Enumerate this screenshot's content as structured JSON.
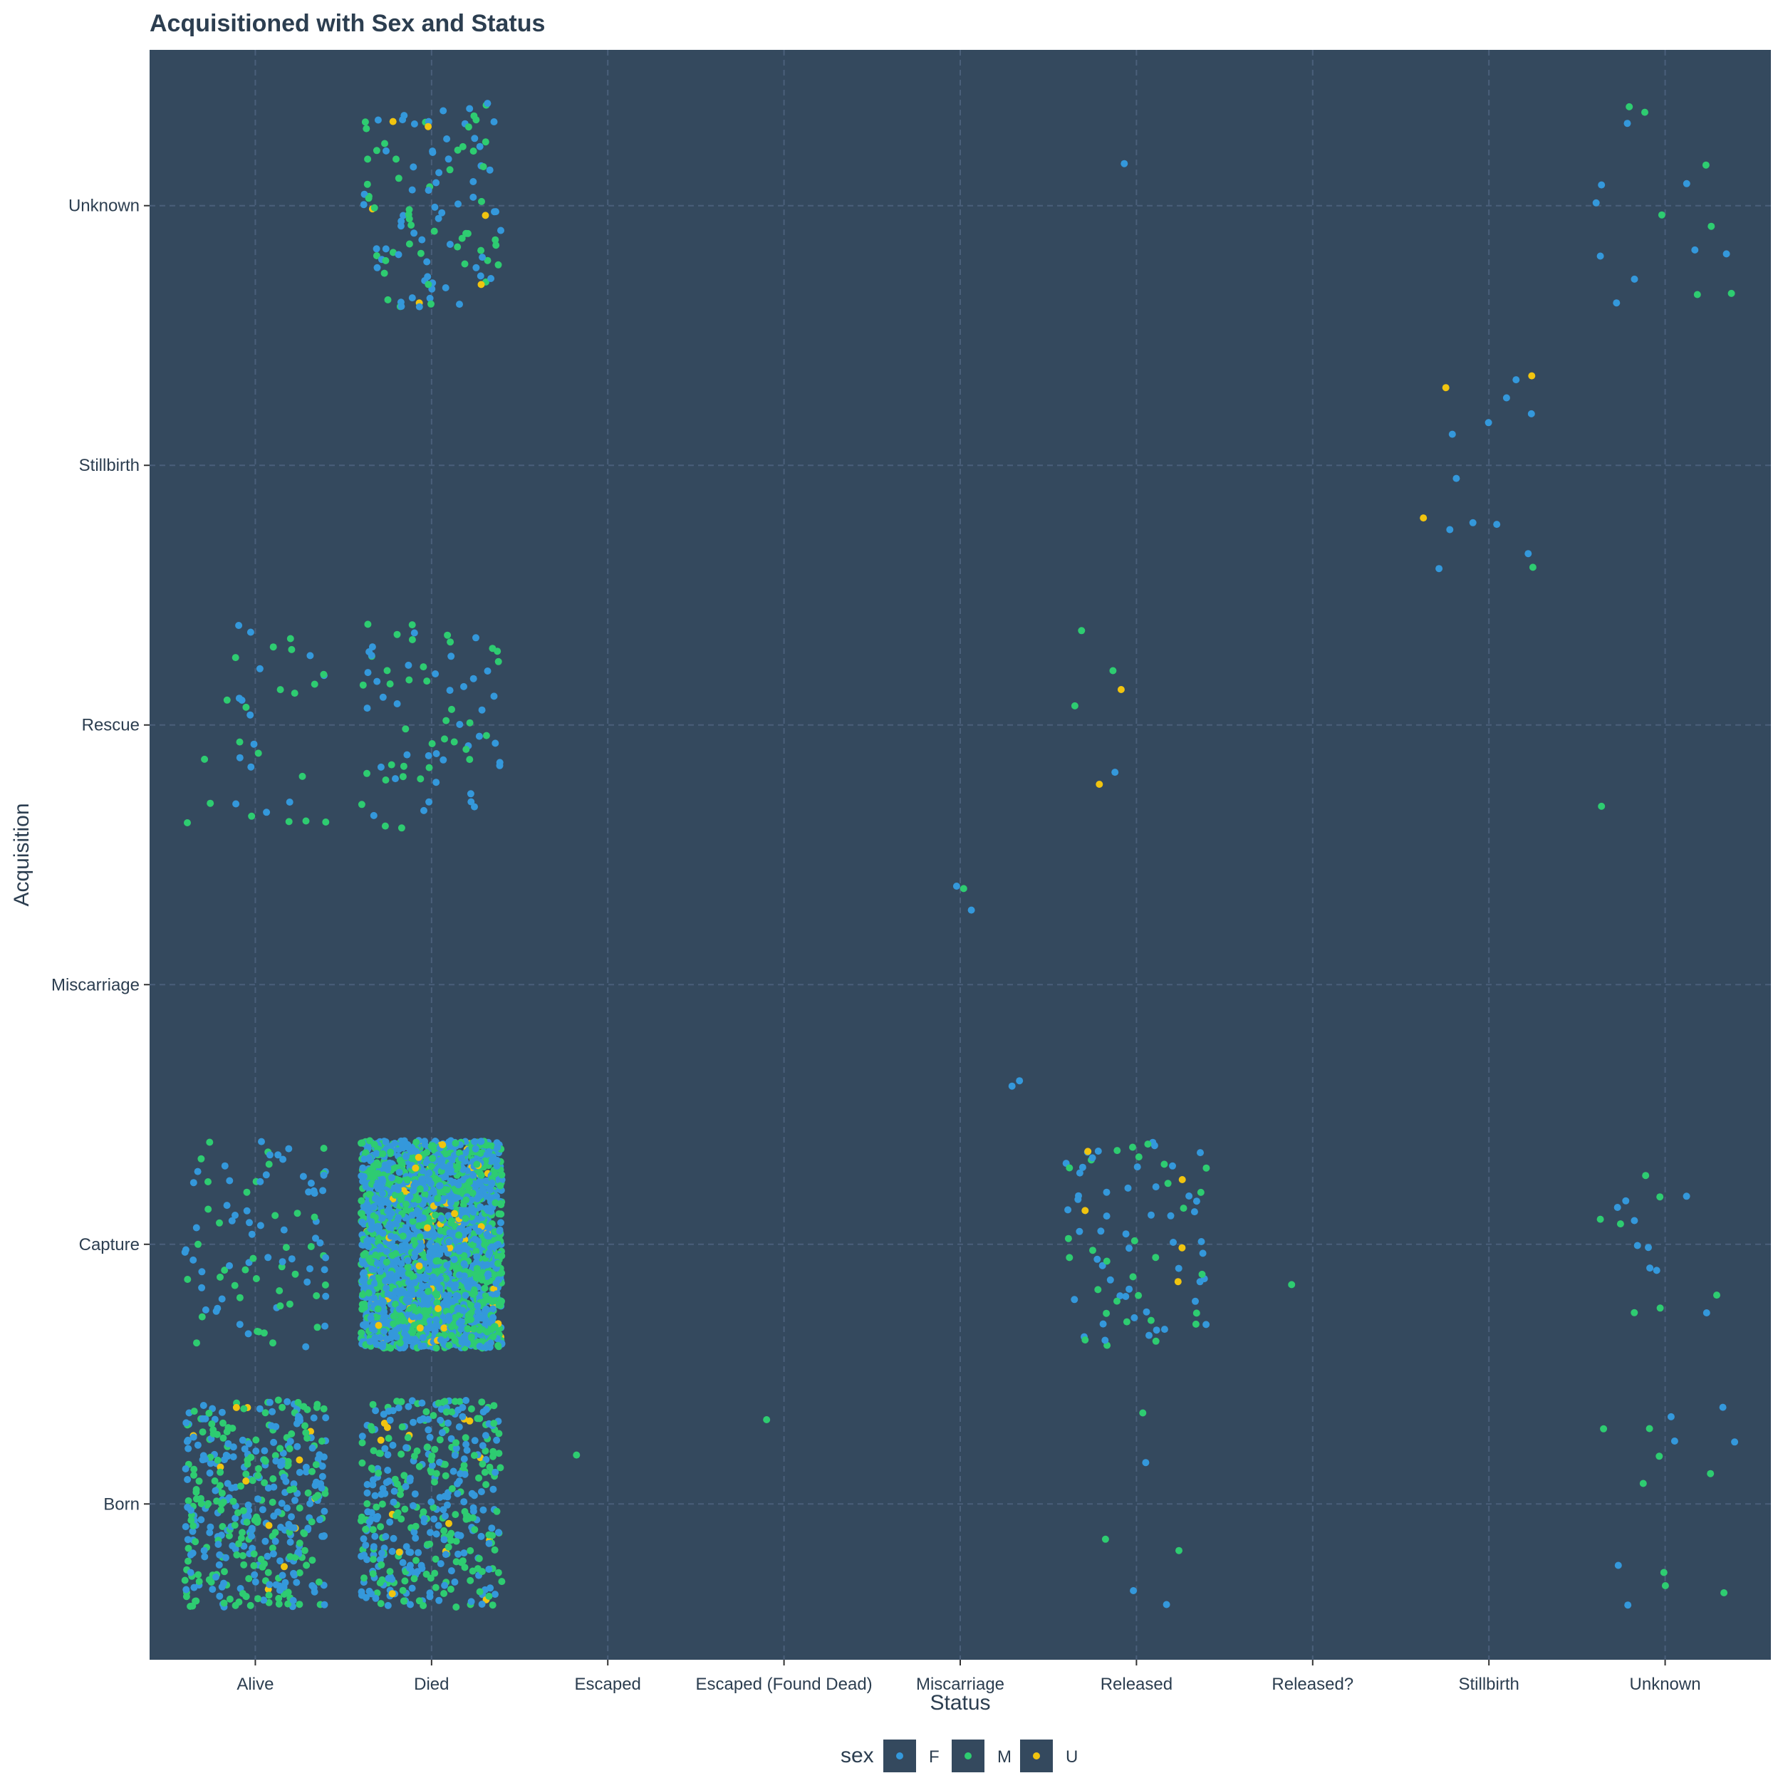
{
  "chart_data": {
    "type": "scatter",
    "subtype": "jitter",
    "title": "Acquisitioned with Sex and Status",
    "xlabel": "Status",
    "ylabel": "Acquisition",
    "x_categories": [
      "Alive",
      "Died",
      "Escaped",
      "Escaped (Found Dead)",
      "Miscarriage",
      "Released",
      "Released?",
      "Stillbirth",
      "Unknown"
    ],
    "y_categories": [
      "Born",
      "Capture",
      "Miscarriage",
      "Rescue",
      "Stillbirth",
      "Unknown"
    ],
    "grid": true,
    "legend": {
      "title": "sex",
      "position": "bottom",
      "entries": [
        {
          "name": "F",
          "color": "#3498db"
        },
        {
          "name": "M",
          "color": "#2ecc71"
        },
        {
          "name": "U",
          "color": "#f1c40f"
        }
      ]
    },
    "panel_background": "#34495e",
    "groups": [
      {
        "x": "Alive",
        "y": "Born",
        "F": 220,
        "M": 190,
        "U": 12
      },
      {
        "x": "Alive",
        "y": "Capture",
        "F": 55,
        "M": 40,
        "U": 0
      },
      {
        "x": "Alive",
        "y": "Rescue",
        "F": 14,
        "M": 20,
        "U": 0
      },
      {
        "x": "Died",
        "y": "Born",
        "F": 210,
        "M": 185,
        "U": 14
      },
      {
        "x": "Died",
        "y": "Capture",
        "F": 1500,
        "M": 1000,
        "U": 90
      },
      {
        "x": "Died",
        "y": "Rescue",
        "F": 38,
        "M": 36,
        "U": 0
      },
      {
        "x": "Died",
        "y": "Unknown",
        "F": 62,
        "M": 50,
        "U": 6
      },
      {
        "x": "Escaped",
        "y": "Born",
        "F": 0,
        "M": 1,
        "U": 0
      },
      {
        "x": "Escaped (Found Dead)",
        "y": "Born",
        "F": 0,
        "M": 1,
        "U": 0
      },
      {
        "x": "Miscarriage",
        "y": "Miscarriage",
        "F": 4,
        "M": 1,
        "U": 0
      },
      {
        "x": "Released",
        "y": "Born",
        "F": 3,
        "M": 3,
        "U": 0
      },
      {
        "x": "Released",
        "y": "Capture",
        "F": 50,
        "M": 30,
        "U": 5
      },
      {
        "x": "Released",
        "y": "Rescue",
        "F": 1,
        "M": 3,
        "U": 2
      },
      {
        "x": "Released",
        "y": "Unknown",
        "F": 1,
        "M": 0,
        "U": 0
      },
      {
        "x": "Released?",
        "y": "Capture",
        "F": 0,
        "M": 1,
        "U": 0
      },
      {
        "x": "Stillbirth",
        "y": "Stillbirth",
        "F": 11,
        "M": 1,
        "U": 3
      },
      {
        "x": "Unknown",
        "y": "Born",
        "F": 6,
        "M": 8,
        "U": 0
      },
      {
        "x": "Unknown",
        "y": "Capture",
        "F": 9,
        "M": 7,
        "U": 0
      },
      {
        "x": "Unknown",
        "y": "Rescue",
        "F": 0,
        "M": 1,
        "U": 0
      },
      {
        "x": "Unknown",
        "y": "Unknown",
        "F": 9,
        "M": 7,
        "U": 0
      }
    ]
  }
}
